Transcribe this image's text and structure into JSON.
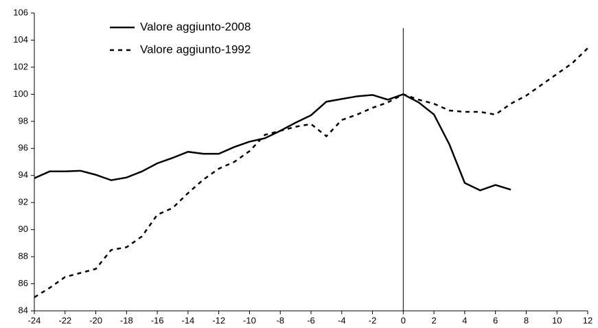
{
  "chart_data": {
    "type": "line",
    "x": [
      -24,
      -23,
      -22,
      -21,
      -20,
      -19,
      -18,
      -17,
      -16,
      -15,
      -14,
      -13,
      -12,
      -11,
      -10,
      -9,
      -8,
      -7,
      -6,
      -5,
      -4,
      -3,
      -2,
      -1,
      0,
      1,
      2,
      3,
      4,
      5,
      6,
      7,
      8,
      9,
      10,
      11,
      12
    ],
    "series": [
      {
        "name": "Valore aggiunto-2008",
        "color": "#000000",
        "dash": false,
        "values": [
          93.8,
          94.3,
          94.3,
          94.35,
          94.05,
          93.65,
          93.85,
          94.3,
          94.9,
          95.3,
          95.75,
          95.6,
          95.6,
          96.1,
          96.5,
          96.75,
          97.3,
          97.9,
          98.45,
          99.45,
          99.65,
          99.85,
          99.95,
          99.6,
          100,
          99.4,
          98.5,
          96.3,
          93.45,
          92.9,
          93.3,
          92.95,
          null,
          null,
          null,
          null,
          null
        ]
      },
      {
        "name": "Valore aggiunto-1992",
        "color": "#000000",
        "dash": true,
        "values": [
          85.0,
          85.7,
          86.5,
          86.8,
          87.1,
          88.5,
          88.7,
          89.5,
          91.1,
          91.6,
          92.7,
          93.7,
          94.5,
          95.0,
          95.8,
          97.0,
          97.3,
          97.6,
          97.8,
          96.9,
          98.1,
          98.5,
          99.0,
          99.4,
          100,
          99.6,
          99.3,
          98.8,
          98.7,
          98.7,
          98.5,
          99.3,
          99.9,
          100.7,
          101.5,
          102.3,
          103.4
        ]
      }
    ],
    "xlim": [
      -24,
      12
    ],
    "xticks": [
      -24,
      -22,
      -20,
      -18,
      -16,
      -14,
      -12,
      -10,
      -8,
      -6,
      -4,
      -2,
      0,
      2,
      4,
      6,
      8,
      10,
      12
    ],
    "ylim": [
      84,
      106
    ],
    "yticks": [
      84,
      86,
      88,
      90,
      92,
      94,
      96,
      98,
      100,
      102,
      104,
      106
    ],
    "vline": 0,
    "legend": "upper-left",
    "grid": false
  }
}
